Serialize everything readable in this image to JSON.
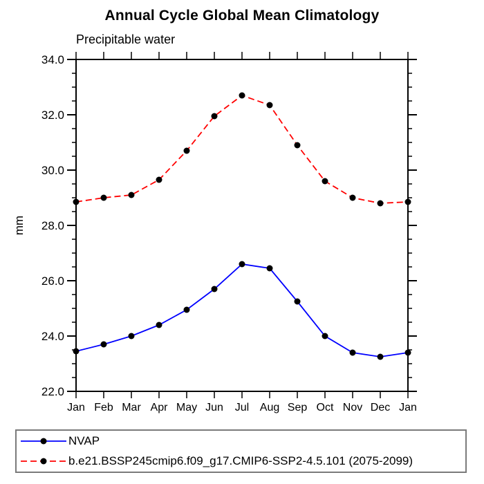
{
  "title": "Annual Cycle Global Mean Climatology",
  "subtitle": "Precipitable water",
  "y_axis_label": "mm",
  "colors": {
    "nvap_line": "#0000ff",
    "model_line": "#ff0000",
    "marker": "#000000",
    "axis": "#000000",
    "legend_border": "#7a7a7a"
  },
  "chart_data": {
    "type": "line",
    "title": "Annual Cycle Global Mean Climatology",
    "subtitle": "Precipitable water",
    "xlabel": "",
    "ylabel": "mm",
    "categories": [
      "Jan",
      "Feb",
      "Mar",
      "Apr",
      "May",
      "Jun",
      "Jul",
      "Aug",
      "Sep",
      "Oct",
      "Nov",
      "Dec",
      "Jan"
    ],
    "ylim": [
      22.0,
      34.0
    ],
    "y_major_tick_labels": [
      "22.0",
      "24.0",
      "26.0",
      "28.0",
      "30.0",
      "32.0",
      "34.0"
    ],
    "y_major_ticks": [
      22.0,
      24.0,
      26.0,
      28.0,
      30.0,
      32.0,
      34.0
    ],
    "y_minor_step": 0.5,
    "grid": false,
    "legend_position": "bottom",
    "series": [
      {
        "name": "NVAP",
        "color": "#0000ff",
        "style": "solid",
        "marker": "circle",
        "marker_color": "#000000",
        "values": [
          23.45,
          23.7,
          24.0,
          24.4,
          24.95,
          25.7,
          26.6,
          26.45,
          25.25,
          24.0,
          23.4,
          23.25,
          23.4
        ]
      },
      {
        "name": "b.e21.BSSP245cmip6.f09_g17.CMIP6-SSP2-4.5.101 (2075-2099)",
        "color": "#ff0000",
        "style": "dashed",
        "marker": "circle",
        "marker_color": "#000000",
        "values": [
          28.85,
          29.0,
          29.1,
          29.65,
          30.7,
          31.95,
          32.7,
          32.35,
          30.9,
          29.6,
          29.0,
          28.8,
          28.85
        ]
      }
    ]
  }
}
